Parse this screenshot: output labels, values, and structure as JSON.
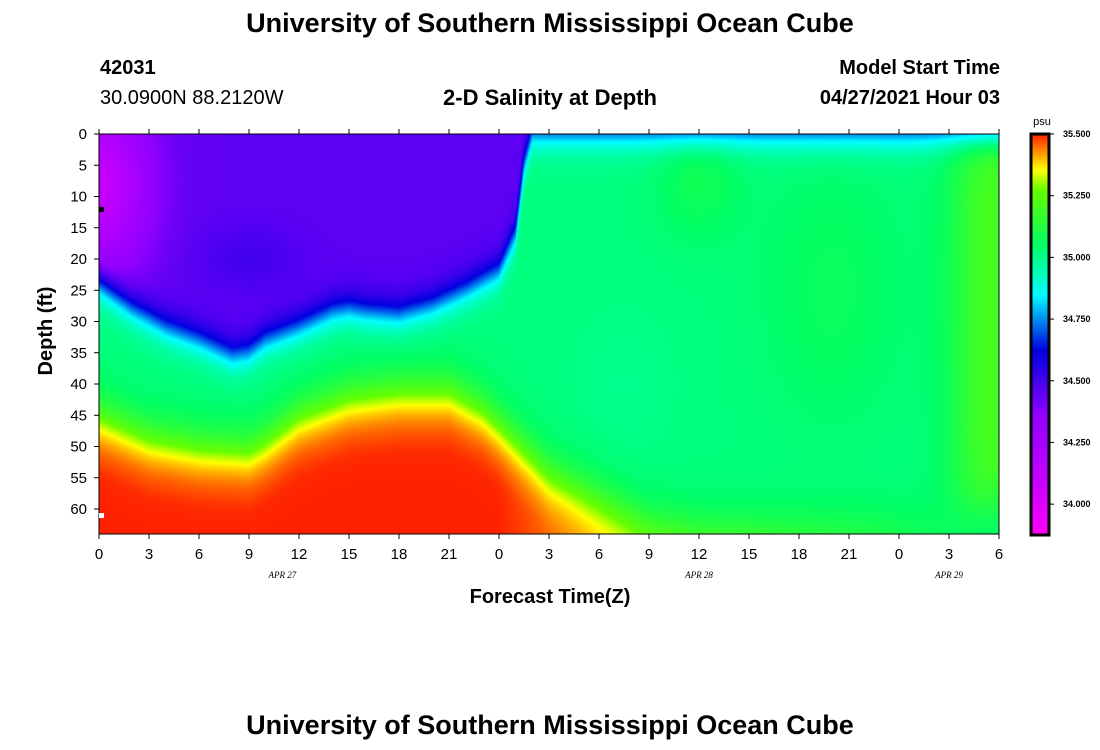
{
  "header": {
    "title_top": "University of Southern Mississippi Ocean Cube",
    "title_bottom": "University of Southern Mississippi Ocean Cube",
    "station_id": "42031",
    "station_coords": "30.0900N  88.2120W",
    "plot_title": "2-D Salinity at Depth",
    "model_label": "Model Start Time",
    "model_time": "04/27/2021 Hour 03"
  },
  "chart_data": {
    "type": "heatmap",
    "title": "2-D Salinity at Depth",
    "xlabel": "Forecast Time(Z)",
    "ylabel": "Depth (ft)",
    "x_hours_range": [
      0,
      54
    ],
    "y_range": [
      0,
      64
    ],
    "x_ticks": [
      "0",
      "3",
      "6",
      "9",
      "12",
      "15",
      "18",
      "21",
      "0",
      "3",
      "6",
      "9",
      "12",
      "15",
      "18",
      "21",
      "0",
      "3",
      "6"
    ],
    "y_ticks": [
      "0",
      "5",
      "10",
      "15",
      "20",
      "25",
      "30",
      "35",
      "40",
      "45",
      "50",
      "55",
      "60"
    ],
    "date_labels": [
      {
        "text": "APR 27",
        "hour": 11
      },
      {
        "text": "APR 28",
        "hour": 36
      },
      {
        "text": "APR 29",
        "hour": 51
      }
    ],
    "colorbar": {
      "unit": "psu",
      "min": 33.875,
      "max": 35.5,
      "tick_labels": [
        "35.500",
        "35.250",
        "35.000",
        "34.750",
        "34.500",
        "34.250",
        "34.000"
      ],
      "tick_values": [
        35.5,
        35.25,
        35.0,
        34.75,
        34.5,
        34.25,
        34.0
      ]
    },
    "fresh_layer_bottom_ft": [
      [
        0,
        24
      ],
      [
        2,
        28
      ],
      [
        4,
        31
      ],
      [
        6,
        33
      ],
      [
        8,
        35.5
      ],
      [
        9,
        35
      ],
      [
        10,
        33
      ],
      [
        12,
        31
      ],
      [
        14,
        28.5
      ],
      [
        15,
        28
      ],
      [
        16,
        28.5
      ],
      [
        18,
        29
      ],
      [
        20,
        27.5
      ],
      [
        22,
        25
      ],
      [
        24,
        22
      ],
      [
        25,
        16
      ],
      [
        25.5,
        5
      ],
      [
        26,
        0
      ]
    ],
    "salty_layer_top_ft": [
      [
        0,
        45
      ],
      [
        3,
        48.5
      ],
      [
        6,
        50
      ],
      [
        9,
        50.5
      ],
      [
        10,
        49
      ],
      [
        12,
        45
      ],
      [
        15,
        42
      ],
      [
        18,
        41
      ],
      [
        21,
        41
      ],
      [
        23,
        44
      ],
      [
        25,
        49
      ],
      [
        27,
        54
      ],
      [
        30,
        58
      ],
      [
        33,
        62
      ],
      [
        36,
        63
      ],
      [
        40,
        62.5
      ],
      [
        43,
        62
      ],
      [
        46,
        61
      ],
      [
        50,
        60.5
      ],
      [
        54,
        60
      ]
    ]
  }
}
